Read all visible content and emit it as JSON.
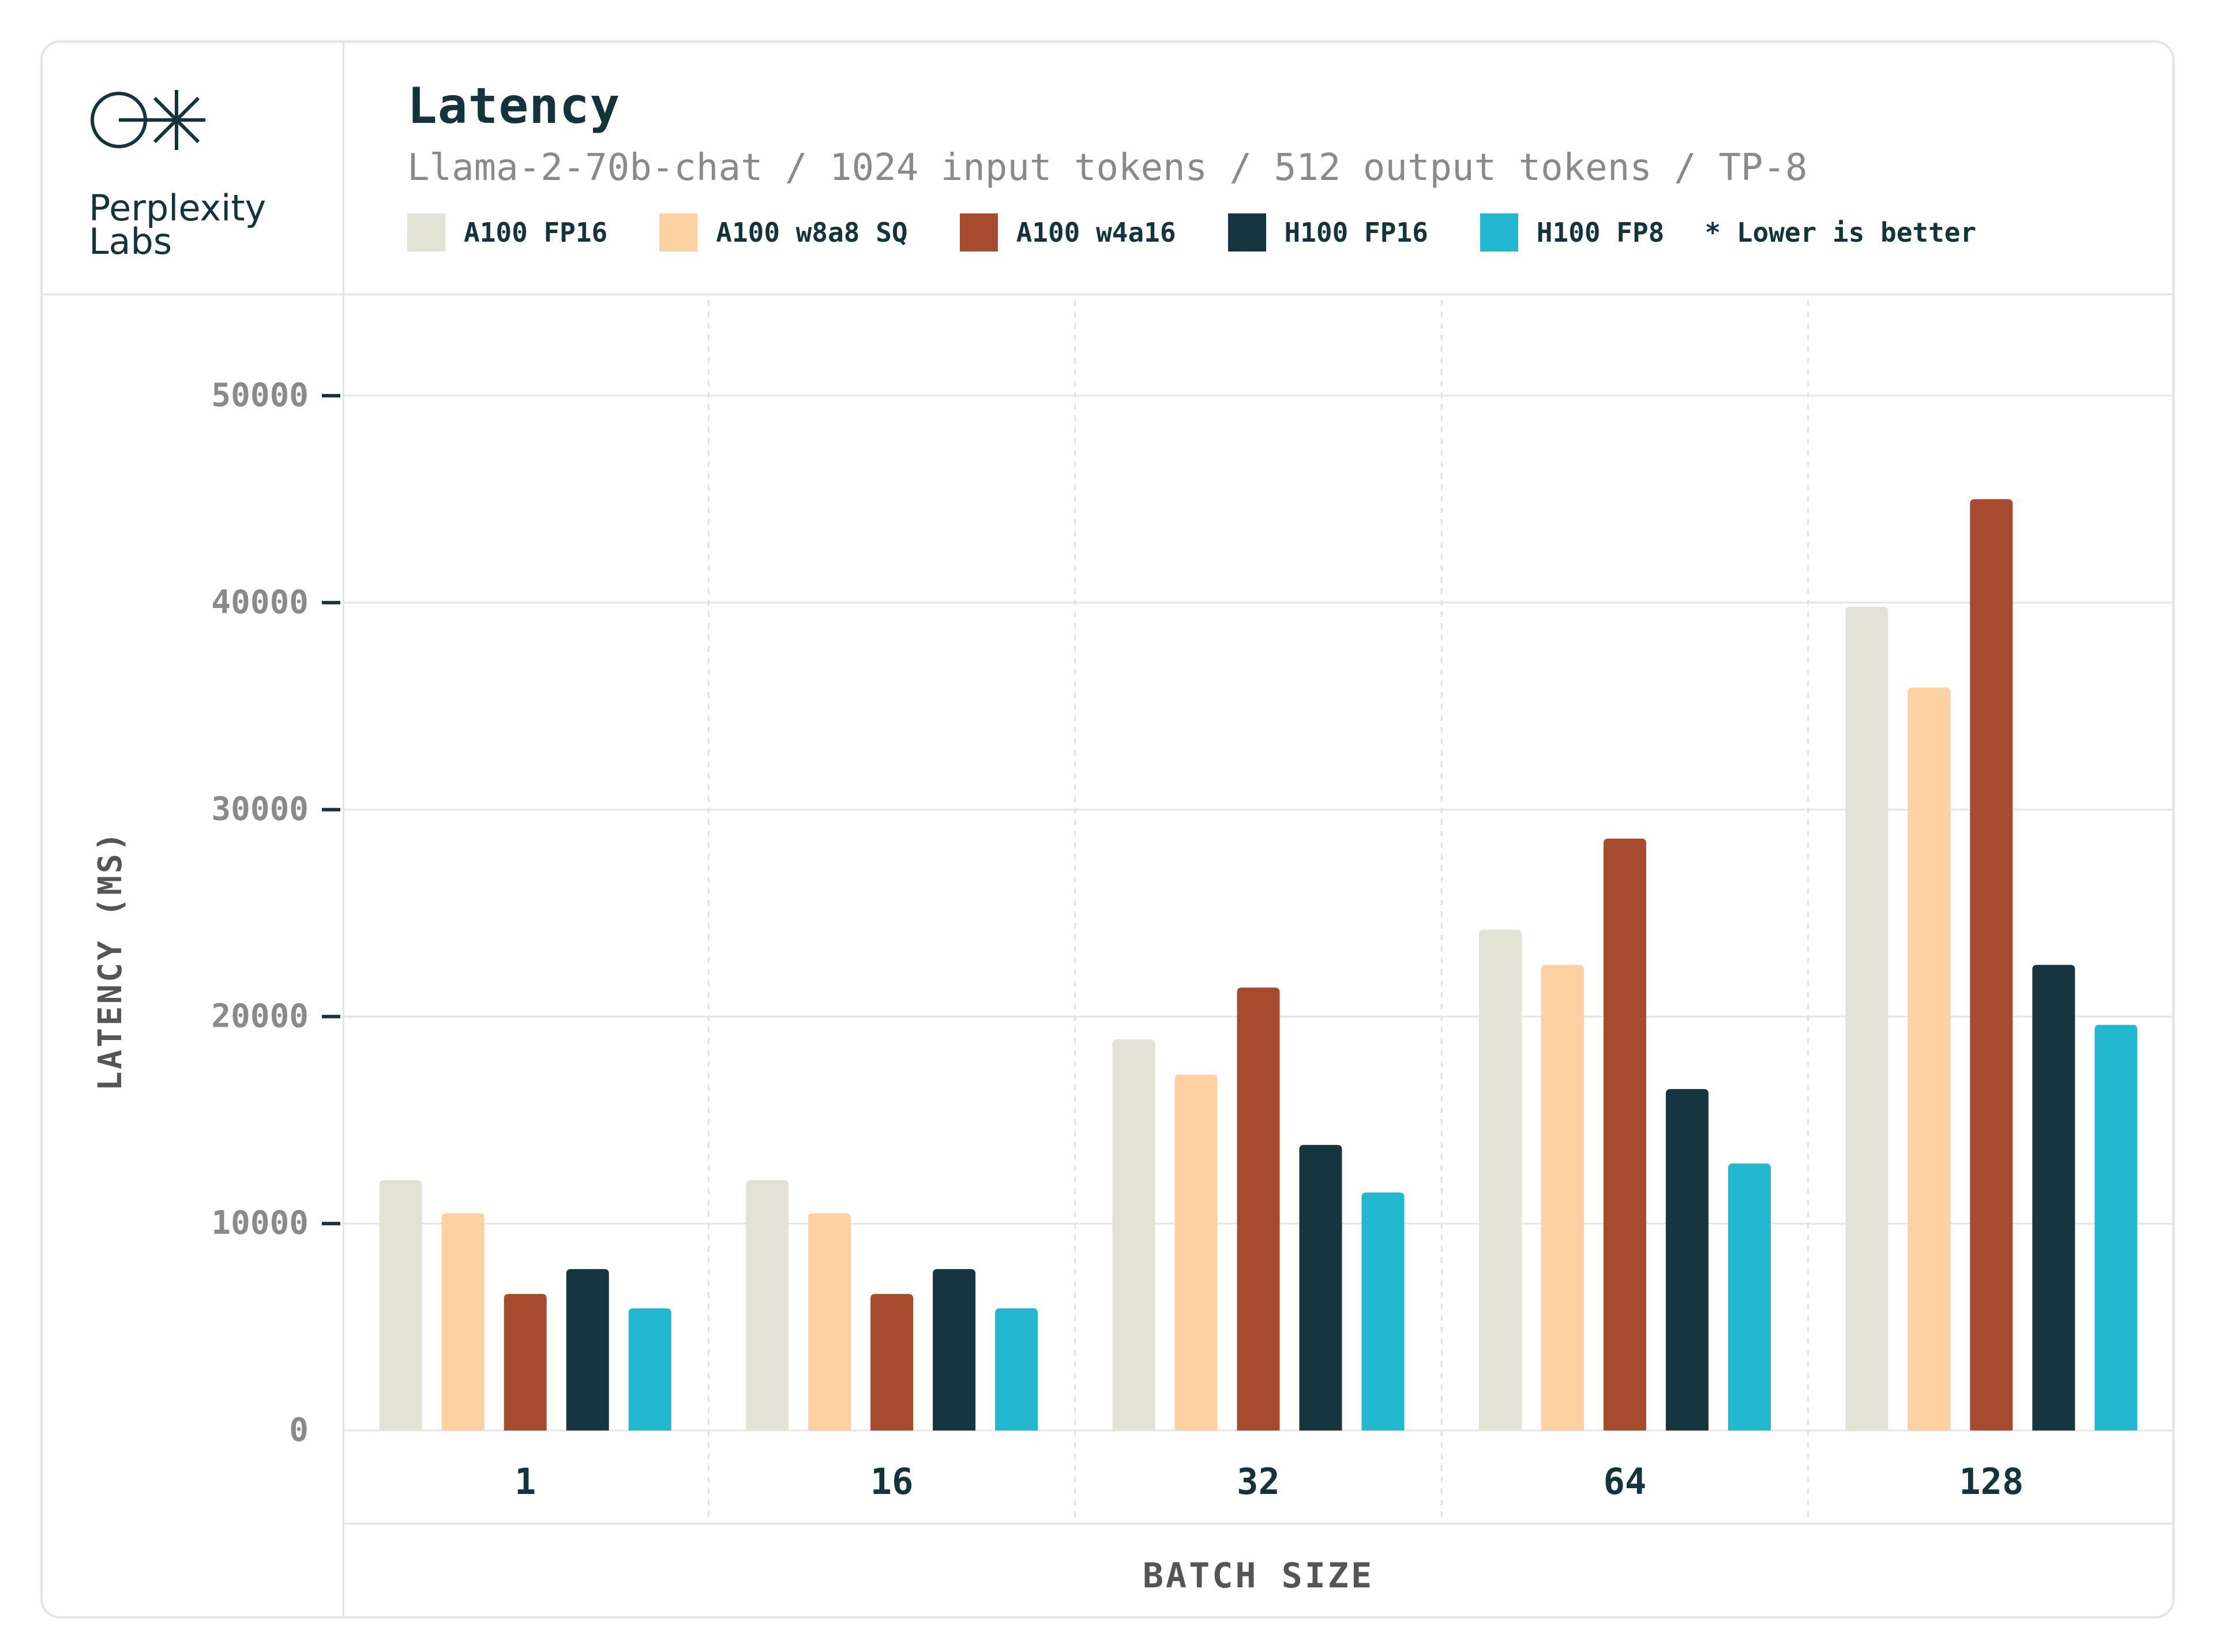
{
  "brand": {
    "line1": "Perplexity",
    "line2": "Labs"
  },
  "header": {
    "title": "Latency",
    "subtitle": "Llama-2-70b-chat / 1024 input tokens / 512 output tokens / TP-8",
    "note": "* Lower is better"
  },
  "colors": {
    "A100 FP16": "#e2e3d5",
    "A100 w8a8 SQ": "#fed1a3",
    "A100 w4a16": "#a74b2f",
    "H100 FP16": "#163540",
    "H100 FP8": "#21b8cf",
    "text": "#13343b",
    "muted": "#8a8a8a"
  },
  "chart_data": {
    "type": "bar",
    "title": "Latency",
    "xlabel": "BATCH SIZE",
    "ylabel": "LATENCY (MS)",
    "ylim": [
      0,
      50000
    ],
    "yticks": [
      0,
      10000,
      20000,
      30000,
      40000,
      50000
    ],
    "categories": [
      "1",
      "16",
      "32",
      "64",
      "128"
    ],
    "series": [
      {
        "name": "A100 FP16",
        "values": [
          12100,
          12100,
          18900,
          24200,
          39800
        ]
      },
      {
        "name": "A100 w8a8 SQ",
        "values": [
          10500,
          10500,
          17200,
          22500,
          35900
        ]
      },
      {
        "name": "A100 w4a16",
        "values": [
          6600,
          6600,
          21400,
          28600,
          45000
        ]
      },
      {
        "name": "H100 FP16",
        "values": [
          7800,
          7800,
          13800,
          16500,
          22500
        ]
      },
      {
        "name": "H100 FP8",
        "values": [
          5900,
          5900,
          11500,
          12900,
          19600
        ]
      }
    ]
  }
}
